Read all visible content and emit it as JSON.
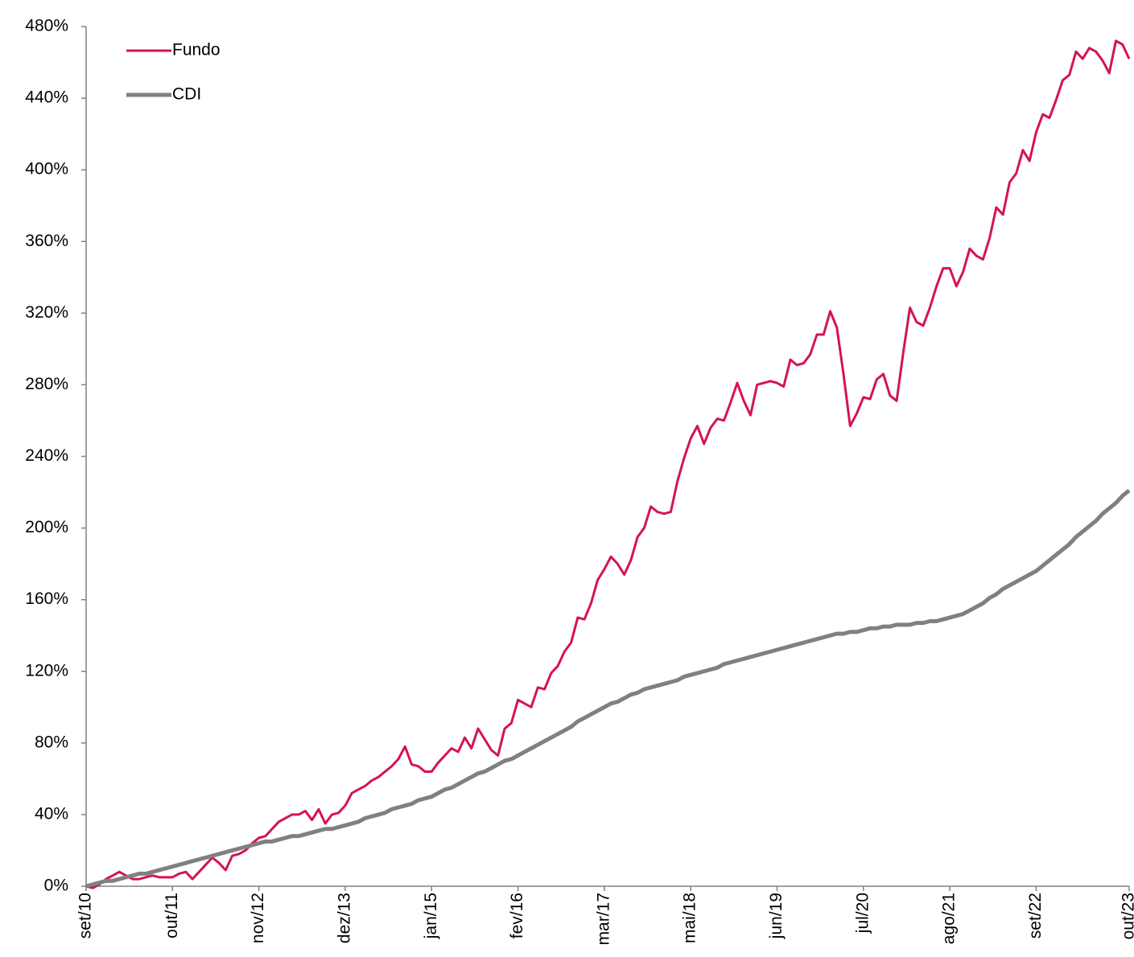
{
  "chart_data": {
    "type": "line",
    "categories": [
      "set/10",
      null,
      null,
      null,
      null,
      null,
      null,
      null,
      null,
      null,
      null,
      null,
      null,
      "out/11",
      null,
      null,
      null,
      null,
      null,
      null,
      null,
      null,
      null,
      null,
      null,
      null,
      "nov/12",
      null,
      null,
      null,
      null,
      null,
      null,
      null,
      null,
      null,
      null,
      null,
      null,
      "dez/13",
      null,
      null,
      null,
      null,
      null,
      null,
      null,
      null,
      null,
      null,
      null,
      null,
      "jan/15",
      null,
      null,
      null,
      null,
      null,
      null,
      null,
      null,
      null,
      null,
      null,
      null,
      "fev/16",
      null,
      null,
      null,
      null,
      null,
      null,
      null,
      null,
      null,
      null,
      null,
      null,
      "mar/17",
      null,
      null,
      null,
      null,
      null,
      null,
      null,
      null,
      null,
      null,
      null,
      null,
      "mai/18",
      null,
      null,
      null,
      null,
      null,
      null,
      null,
      null,
      null,
      null,
      null,
      null,
      "jun/19",
      null,
      null,
      null,
      null,
      null,
      null,
      null,
      null,
      null,
      null,
      null,
      null,
      "jul/20",
      null,
      null,
      null,
      null,
      null,
      null,
      null,
      null,
      null,
      null,
      null,
      null,
      "ago/21",
      null,
      null,
      null,
      null,
      null,
      null,
      null,
      null,
      null,
      null,
      null,
      null,
      "set/22",
      null,
      null,
      null,
      null,
      null,
      null,
      null,
      null,
      null,
      null,
      null,
      null,
      null,
      "out/23"
    ],
    "series": [
      {
        "name": "Fundo",
        "color": "#d5144f",
        "width": 3,
        "values": [
          0,
          -1,
          1,
          4,
          6,
          8,
          6,
          4,
          4,
          5,
          6,
          5,
          5,
          5,
          7,
          8,
          4,
          8,
          12,
          16,
          13,
          9,
          17,
          18,
          20,
          24,
          27,
          28,
          32,
          36,
          38,
          40,
          40,
          42,
          37,
          43,
          35,
          40,
          41,
          45,
          52,
          54,
          56,
          59,
          61,
          64,
          67,
          71,
          78,
          68,
          67,
          64,
          64,
          69,
          73,
          77,
          75,
          83,
          77,
          88,
          82,
          76,
          73,
          88,
          91,
          104,
          102,
          100,
          111,
          110,
          119,
          123,
          131,
          136,
          150,
          149,
          158,
          171,
          177,
          184,
          180,
          174,
          182,
          195,
          200,
          212,
          209,
          208,
          209,
          226,
          239,
          250,
          257,
          247,
          256,
          261,
          260,
          270,
          281,
          271,
          263,
          280,
          281,
          282,
          281,
          279,
          294,
          291,
          292,
          297,
          308,
          308,
          321,
          312,
          286,
          257,
          264,
          273,
          272,
          283,
          286,
          274,
          271,
          298,
          323,
          315,
          313,
          323,
          335,
          345,
          345,
          335,
          343,
          356,
          352,
          350,
          362,
          379,
          375,
          393,
          398,
          411,
          405,
          421,
          431,
          429,
          439,
          450,
          453,
          466,
          462,
          468,
          466,
          461,
          454,
          472,
          470,
          462
        ]
      },
      {
        "name": "CDI",
        "color": "#808080",
        "width": 5,
        "values": [
          0,
          1,
          2,
          3,
          3,
          4,
          5,
          6,
          7,
          7,
          8,
          9,
          10,
          11,
          12,
          13,
          14,
          15,
          16,
          17,
          18,
          19,
          20,
          21,
          22,
          23,
          24,
          25,
          25,
          26,
          27,
          28,
          28,
          29,
          30,
          31,
          32,
          32,
          33,
          34,
          35,
          36,
          38,
          39,
          40,
          41,
          43,
          44,
          45,
          46,
          48,
          49,
          50,
          52,
          54,
          55,
          57,
          59,
          61,
          63,
          64,
          66,
          68,
          70,
          71,
          73,
          75,
          77,
          79,
          81,
          83,
          85,
          87,
          89,
          92,
          94,
          96,
          98,
          100,
          102,
          103,
          105,
          107,
          108,
          110,
          111,
          112,
          113,
          114,
          115,
          117,
          118,
          119,
          120,
          121,
          122,
          124,
          125,
          126,
          127,
          128,
          129,
          130,
          131,
          132,
          133,
          134,
          135,
          136,
          137,
          138,
          139,
          140,
          141,
          141,
          142,
          142,
          143,
          144,
          144,
          145,
          145,
          146,
          146,
          146,
          147,
          147,
          148,
          148,
          149,
          150,
          151,
          152,
          154,
          156,
          158,
          161,
          163,
          166,
          168,
          170,
          172,
          174,
          176,
          179,
          182,
          185,
          188,
          191,
          195,
          198,
          201,
          204,
          208,
          211,
          214,
          218,
          221
        ]
      }
    ],
    "ylim": [
      0,
      480
    ],
    "yticks": [
      {
        "value": 0,
        "label": "0%"
      },
      {
        "value": 40,
        "label": "40%"
      },
      {
        "value": 80,
        "label": "80%"
      },
      {
        "value": 120,
        "label": "120%"
      },
      {
        "value": 160,
        "label": "160%"
      },
      {
        "value": 200,
        "label": "200%"
      },
      {
        "value": 240,
        "label": "240%"
      },
      {
        "value": 280,
        "label": "280%"
      },
      {
        "value": 320,
        "label": "320%"
      },
      {
        "value": 360,
        "label": "360%"
      },
      {
        "value": 400,
        "label": "400%"
      },
      {
        "value": 440,
        "label": "440%"
      },
      {
        "value": 480,
        "label": "480%"
      }
    ],
    "legend": "top-left"
  }
}
